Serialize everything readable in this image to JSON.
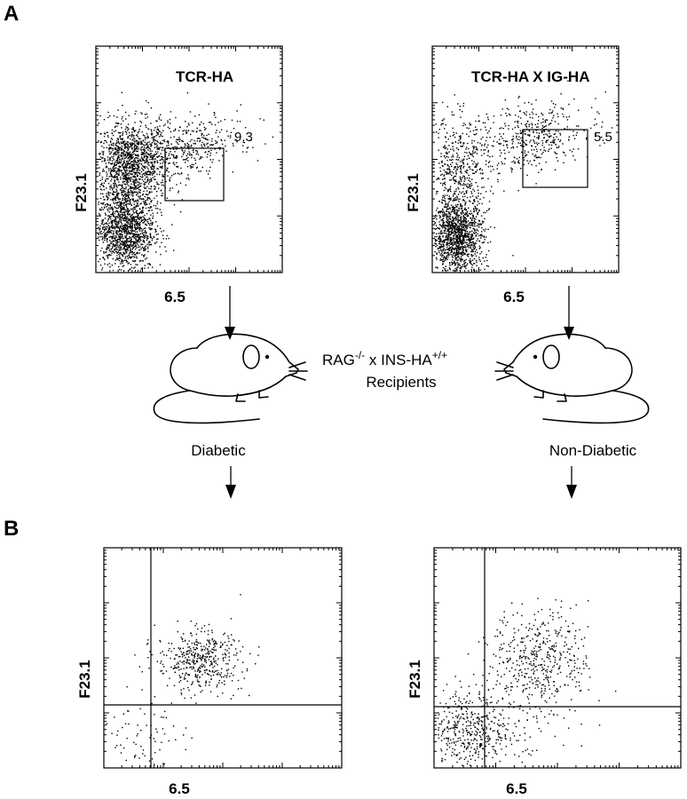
{
  "panels": {
    "A": "A",
    "B": "B"
  },
  "panel_a": {
    "left": {
      "title": "TCR-HA",
      "xlabel": "6.5",
      "ylabel": "F23.1",
      "gate_value": "9.3"
    },
    "right": {
      "title": "TCR-HA X IG-HA",
      "xlabel": "6.5",
      "ylabel": "F23.1",
      "gate_value": "5.5"
    }
  },
  "middle": {
    "recipients_line1_a": "RAG",
    "recipients_line1_a_sup": "-/-",
    "recipients_line1_b": " x  INS-HA",
    "recipients_line1_b_sup": "+/+",
    "recipients_line2": "Recipients",
    "left_outcome": "Diabetic",
    "right_outcome": "Non-Diabetic"
  },
  "panel_b": {
    "left": {
      "xlabel": "6.5",
      "ylabel": "F23.1"
    },
    "right": {
      "xlabel": "6.5",
      "ylabel": "F23.1"
    }
  },
  "chart_data": [
    {
      "type": "scatter",
      "xlabel": "6.5",
      "ylabel": "F23.1",
      "title": "TCR-HA",
      "scale": "log",
      "gate": {
        "label": "9.3",
        "percent": 9.3
      },
      "populations": [
        {
          "x_center": 0.18,
          "y_center": 0.47,
          "density": "high"
        },
        {
          "x_center": 0.15,
          "y_center": 0.19,
          "density": "high"
        },
        {
          "x_center": 0.45,
          "y_center": 0.55,
          "density": "medium"
        }
      ]
    },
    {
      "type": "scatter",
      "xlabel": "6.5",
      "ylabel": "F23.1",
      "title": "TCR-HA X IG-HA",
      "scale": "log",
      "gate": {
        "label": "5.5",
        "percent": 5.5
      },
      "populations": [
        {
          "x_center": 0.13,
          "y_center": 0.16,
          "density": "high"
        },
        {
          "x_center": 0.14,
          "y_center": 0.45,
          "density": "medium"
        },
        {
          "x_center": 0.52,
          "y_center": 0.6,
          "density": "medium"
        }
      ]
    },
    {
      "type": "scatter",
      "xlabel": "6.5",
      "ylabel": "F23.1",
      "outcome": "Diabetic",
      "quadrants": true,
      "populations": [
        {
          "x_center": 0.4,
          "y_center": 0.49,
          "density": "medium"
        },
        {
          "x_center": 0.12,
          "y_center": 0.14,
          "density": "low"
        }
      ]
    },
    {
      "type": "scatter",
      "xlabel": "6.5",
      "ylabel": "F23.1",
      "outcome": "Non-Diabetic",
      "quadrants": true,
      "populations": [
        {
          "x_center": 0.43,
          "y_center": 0.5,
          "density": "medium"
        },
        {
          "x_center": 0.13,
          "y_center": 0.17,
          "density": "medium"
        },
        {
          "x_center": 0.3,
          "y_center": 0.2,
          "density": "low"
        }
      ]
    }
  ]
}
